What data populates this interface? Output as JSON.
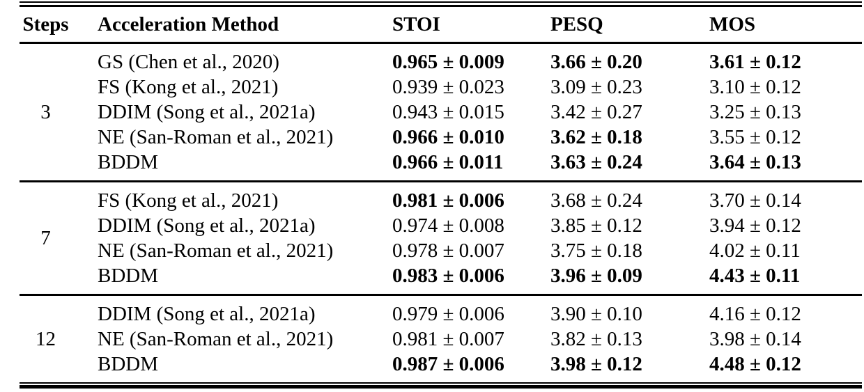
{
  "table": {
    "columns": {
      "steps": "Steps",
      "method": "Acceleration Method",
      "stoi": "STOI",
      "pesq": "PESQ",
      "mos": "MOS"
    },
    "groups": [
      {
        "steps": "3",
        "rows": [
          {
            "method": "GS (Chen et al., 2020)",
            "stoi": "0.965 ± 0.009",
            "pesq": "3.66 ± 0.20",
            "mos": "3.61 ± 0.12",
            "bold": [
              "stoi",
              "pesq",
              "mos"
            ]
          },
          {
            "method": "FS (Kong et al., 2021)",
            "stoi": "0.939 ± 0.023",
            "pesq": "3.09 ± 0.23",
            "mos": "3.10 ± 0.12",
            "bold": []
          },
          {
            "method": "DDIM (Song et al., 2021a)",
            "stoi": "0.943 ± 0.015",
            "pesq": "3.42 ± 0.27",
            "mos": "3.25 ± 0.13",
            "bold": []
          },
          {
            "method": "NE (San-Roman et al., 2021)",
            "stoi": "0.966 ± 0.010",
            "pesq": "3.62 ± 0.18",
            "mos": "3.55 ± 0.12",
            "bold": [
              "stoi",
              "pesq"
            ]
          },
          {
            "method": "BDDM",
            "stoi": "0.966 ± 0.011",
            "pesq": "3.63 ± 0.24",
            "mos": "3.64 ± 0.13",
            "bold": [
              "stoi",
              "pesq",
              "mos"
            ]
          }
        ]
      },
      {
        "steps": "7",
        "rows": [
          {
            "method": "FS (Kong et al., 2021)",
            "stoi": "0.981 ± 0.006",
            "pesq": "3.68 ± 0.24",
            "mos": "3.70 ± 0.14",
            "bold": [
              "stoi"
            ]
          },
          {
            "method": "DDIM (Song et al., 2021a)",
            "stoi": "0.974 ± 0.008",
            "pesq": "3.85 ± 0.12",
            "mos": "3.94 ± 0.12",
            "bold": []
          },
          {
            "method": "NE (San-Roman et al., 2021)",
            "stoi": "0.978 ± 0.007",
            "pesq": "3.75 ± 0.18",
            "mos": "4.02 ± 0.11",
            "bold": []
          },
          {
            "method": "BDDM",
            "stoi": "0.983 ± 0.006",
            "pesq": "3.96 ± 0.09",
            "mos": "4.43 ± 0.11",
            "bold": [
              "stoi",
              "pesq",
              "mos"
            ]
          }
        ]
      },
      {
        "steps": "12",
        "rows": [
          {
            "method": "DDIM (Song et al., 2021a)",
            "stoi": "0.979 ± 0.006",
            "pesq": "3.90 ± 0.10",
            "mos": "4.16 ± 0.12",
            "bold": []
          },
          {
            "method": "NE (San-Roman et al., 2021)",
            "stoi": "0.981 ± 0.007",
            "pesq": "3.82 ± 0.13",
            "mos": "3.98 ± 0.14",
            "bold": []
          },
          {
            "method": "BDDM",
            "stoi": "0.987 ± 0.006",
            "pesq": "3.98 ± 0.12",
            "mos": "4.48 ± 0.12",
            "bold": [
              "stoi",
              "pesq",
              "mos"
            ]
          }
        ]
      }
    ]
  }
}
